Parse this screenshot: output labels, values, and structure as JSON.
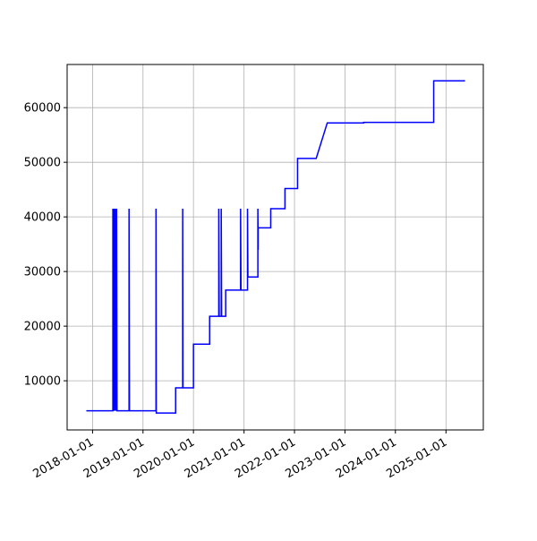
{
  "chart_data": {
    "type": "line",
    "color": "#0000ff",
    "grid": true,
    "xlim": [
      "2017-07-01",
      "2025-09-28"
    ],
    "xticks": [
      "2018-01-01",
      "2019-01-01",
      "2020-01-01",
      "2021-01-01",
      "2022-01-01",
      "2023-01-01",
      "2024-01-01",
      "2025-01-01"
    ],
    "ylim": [
      1000,
      67900
    ],
    "yticks": [
      10000,
      20000,
      30000,
      40000,
      50000,
      60000
    ],
    "x": [
      "2017-11-17",
      "2018-05-28",
      "2018-05-28",
      "2018-05-30",
      "2018-06-05",
      "2018-06-08",
      "2018-06-14",
      "2018-06-18",
      "2018-06-24",
      "2018-06-27",
      "2018-09-22",
      "2018-09-22",
      "2018-09-25",
      "2019-04-05",
      "2019-04-05",
      "2019-04-07",
      "2019-08-25",
      "2019-08-25",
      "2019-10-15",
      "2019-10-15",
      "2019-10-17",
      "2020-01-01",
      "2020-01-01",
      "2020-04-27",
      "2020-04-27",
      "2020-07-02",
      "2020-07-02",
      "2020-07-05",
      "2020-07-20",
      "2020-07-20",
      "2020-07-23",
      "2020-08-21",
      "2020-08-21",
      "2020-12-07",
      "2020-12-07",
      "2020-12-10",
      "2021-01-26",
      "2021-01-26",
      "2021-01-29",
      "2021-04-11",
      "2021-04-11",
      "2021-04-13",
      "2021-04-13",
      "2021-07-13",
      "2021-07-13",
      "2021-10-24",
      "2021-10-24",
      "2022-01-23",
      "2022-01-23",
      "2022-06-07",
      "2022-08-26",
      "2023-05-16",
      "2023-05-16",
      "2024-10-04",
      "2024-10-04",
      "2025-05-19"
    ],
    "values": [
      4500,
      4500,
      41500,
      4500,
      41500,
      4500,
      41500,
      4500,
      41500,
      4500,
      4500,
      41500,
      4500,
      4500,
      41500,
      4100,
      4100,
      8700,
      8700,
      41500,
      8700,
      8700,
      16700,
      16700,
      21800,
      21800,
      41500,
      21800,
      21800,
      41500,
      21800,
      21800,
      26600,
      26600,
      41500,
      26600,
      26600,
      41500,
      29000,
      29000,
      41500,
      34000,
      38000,
      38000,
      41500,
      41500,
      45200,
      45200,
      50700,
      50700,
      57200,
      57200,
      57300,
      57300,
      64900,
      64900
    ]
  }
}
